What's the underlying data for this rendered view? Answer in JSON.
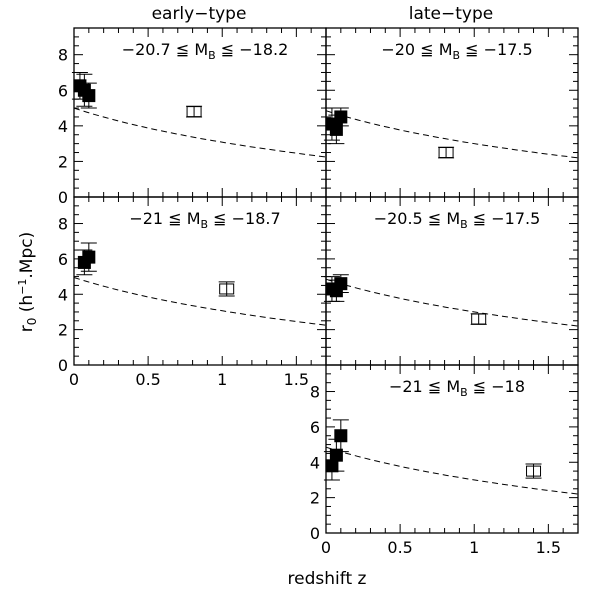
{
  "figure": {
    "column_titles": [
      "early−type",
      "late−type"
    ],
    "ylabel_main": "r",
    "ylabel_sub": "0",
    "ylabel_rest": " (h",
    "ylabel_sup": "−1",
    "ylabel_end": ".Mpc)",
    "xlabel": "redshift z"
  },
  "chart_data": [
    {
      "type": "scatter",
      "panel": "top-left",
      "label_parts": [
        "−20.7 ≦ M",
        "B",
        " ≦ −18.2"
      ],
      "xlim": [
        0,
        1.7
      ],
      "ylim": [
        0,
        9.5
      ],
      "xticks": [
        0,
        0.5,
        1,
        1.5
      ],
      "yticks": [
        0,
        2,
        4,
        6,
        8
      ],
      "show_x_ticklabels": false,
      "show_y_ticklabels": true,
      "y_ticklabels_shown": [
        "0",
        "2",
        "4",
        "6",
        "8"
      ],
      "filled_points": [
        {
          "x": 0.04,
          "y": 6.25,
          "err": 0.75
        },
        {
          "x": 0.07,
          "y": 6.0,
          "err": 0.9
        },
        {
          "x": 0.1,
          "y": 5.7,
          "err": 0.7
        }
      ],
      "open_points": [
        {
          "x": 0.81,
          "y": 4.8,
          "err": 0.3
        }
      ],
      "model_curve": {
        "y0": 5.0,
        "y_end": 2.25
      }
    },
    {
      "type": "scatter",
      "panel": "top-right",
      "label_parts": [
        "−20 ≦ M",
        "B",
        " ≦ −17.5"
      ],
      "xlim": [
        0,
        1.7
      ],
      "ylim": [
        0,
        9.5
      ],
      "xticks": [
        0,
        0.5,
        1,
        1.5
      ],
      "yticks": [
        0,
        2,
        4,
        6,
        8
      ],
      "show_x_ticklabels": false,
      "show_y_ticklabels": false,
      "filled_points": [
        {
          "x": 0.04,
          "y": 4.1,
          "err": 0.9
        },
        {
          "x": 0.07,
          "y": 3.8,
          "err": 0.8
        },
        {
          "x": 0.1,
          "y": 4.5,
          "err": 0.5
        }
      ],
      "open_points": [
        {
          "x": 0.81,
          "y": 2.5,
          "err": 0.3
        }
      ],
      "model_curve": {
        "y0": 4.85,
        "y_end": 2.2
      }
    },
    {
      "type": "scatter",
      "panel": "middle-left",
      "label_parts": [
        "−21 ≦ M",
        "B",
        " ≦ −18.7"
      ],
      "xlim": [
        0,
        1.7
      ],
      "ylim": [
        0,
        9.5
      ],
      "xticks": [
        0,
        0.5,
        1,
        1.5
      ],
      "yticks": [
        0,
        2,
        4,
        6,
        8
      ],
      "show_x_ticklabels": true,
      "x_ticklabels_shown": [
        "0",
        "0.5",
        "1",
        "1.5"
      ],
      "show_y_ticklabels": true,
      "y_ticklabels_shown": [
        "0",
        "2",
        "4",
        "6",
        "8"
      ],
      "filled_points": [
        {
          "x": 0.07,
          "y": 5.8,
          "err": 0.7
        },
        {
          "x": 0.1,
          "y": 6.1,
          "err": 0.8
        }
      ],
      "open_points": [
        {
          "x": 1.03,
          "y": 4.3,
          "err": 0.4
        }
      ],
      "model_curve": {
        "y0": 4.95,
        "y_end": 2.25
      }
    },
    {
      "type": "scatter",
      "panel": "middle-right",
      "label_parts": [
        "−20.5 ≦ M",
        "B",
        " ≦ −17.5"
      ],
      "xlim": [
        0,
        1.7
      ],
      "ylim": [
        0,
        9.5
      ],
      "xticks": [
        0,
        0.5,
        1,
        1.5
      ],
      "yticks": [
        0,
        2,
        4,
        6,
        8
      ],
      "show_x_ticklabels": false,
      "show_y_ticklabels": false,
      "filled_points": [
        {
          "x": 0.04,
          "y": 4.3,
          "err": 0.7
        },
        {
          "x": 0.07,
          "y": 4.2,
          "err": 0.6
        },
        {
          "x": 0.1,
          "y": 4.6,
          "err": 0.5
        }
      ],
      "open_points": [
        {
          "x": 1.03,
          "y": 2.6,
          "err": 0.3
        }
      ],
      "model_curve": {
        "y0": 4.85,
        "y_end": 2.2
      }
    },
    {
      "type": "scatter",
      "panel": "bottom-right",
      "label_parts": [
        "−21 ≦ M",
        "B",
        " ≦ −18"
      ],
      "xlim": [
        0,
        1.7
      ],
      "ylim": [
        0,
        9.5
      ],
      "xticks": [
        0,
        0.5,
        1,
        1.5
      ],
      "yticks": [
        0,
        2,
        4,
        6,
        8
      ],
      "show_x_ticklabels": true,
      "x_ticklabels_shown": [
        "0",
        "0.5",
        "1",
        "1.5"
      ],
      "show_y_ticklabels": true,
      "y_ticklabels_shown": [
        "0",
        "2",
        "4",
        "6",
        "8"
      ],
      "filled_points": [
        {
          "x": 0.04,
          "y": 3.8,
          "err": 0.8
        },
        {
          "x": 0.07,
          "y": 4.4,
          "err": 0.9
        },
        {
          "x": 0.1,
          "y": 5.5,
          "err": 0.9
        }
      ],
      "open_points": [
        {
          "x": 1.4,
          "y": 3.5,
          "err": 0.4
        }
      ],
      "model_curve": {
        "y0": 4.85,
        "y_end": 2.2
      }
    }
  ]
}
